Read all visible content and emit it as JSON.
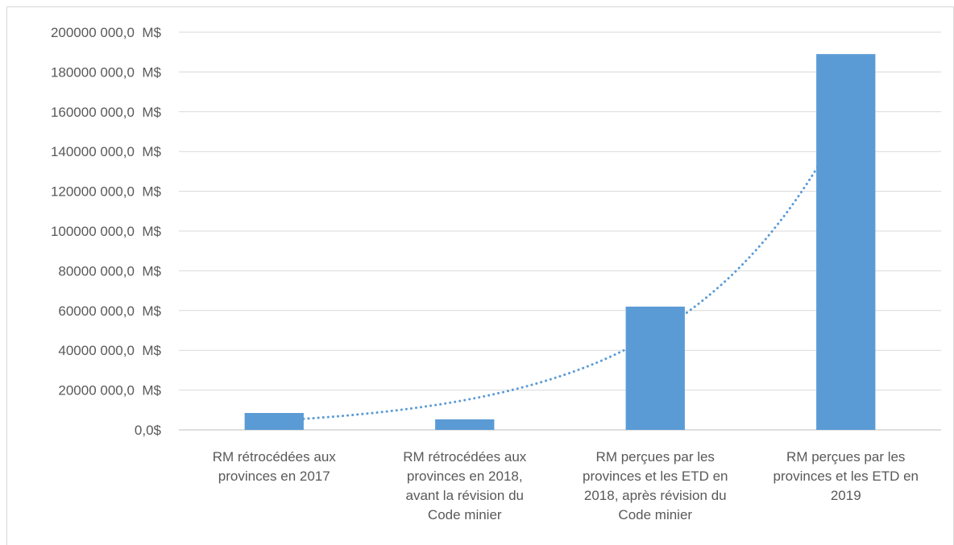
{
  "chart_data": {
    "type": "bar",
    "categories": [
      "RM rétrocédées aux\nprovinces en 2017",
      "RM rétrocédées aux\nprovinces en 2018,\navant la révision du\nCode minier",
      "RM perçues par les\nprovinces et les ETD en\n2018, après révision du\nCode minier",
      "RM perçues par les\nprovinces et les ETD en\n2019"
    ],
    "values": [
      8500000,
      5300000,
      62000000,
      189000000
    ],
    "color": "#5b9bd5",
    "trendline": "exponential",
    "ylim": [
      0,
      200000000
    ],
    "yticks": [
      {
        "value": 0,
        "label": "0,0$"
      },
      {
        "value": 20000000,
        "label": "20000 000,0  M$"
      },
      {
        "value": 40000000,
        "label": "40000 000,0  M$"
      },
      {
        "value": 60000000,
        "label": "60000 000,0  M$"
      },
      {
        "value": 80000000,
        "label": "80000 000,0  M$"
      },
      {
        "value": 100000000,
        "label": "100000 000,0  M$"
      },
      {
        "value": 120000000,
        "label": "120000 000,0  M$"
      },
      {
        "value": 140000000,
        "label": "140000 000,0  M$"
      },
      {
        "value": 160000000,
        "label": "160000 000,0  M$"
      },
      {
        "value": 180000000,
        "label": "180000 000,0  M$"
      },
      {
        "value": 200000000,
        "label": "200000 000,0  M$"
      }
    ],
    "grid": true
  }
}
